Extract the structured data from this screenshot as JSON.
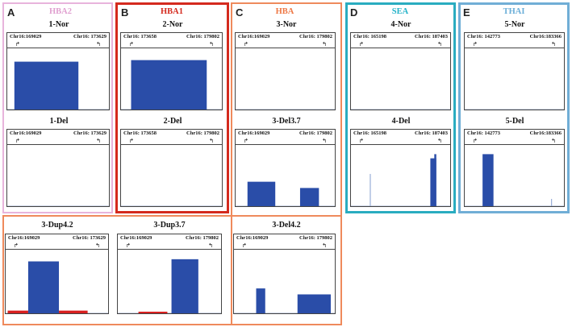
{
  "groups": [
    {
      "letter": "A",
      "name": "HBA2",
      "name_color": "#e0a0d0",
      "frame_color": "#e8b4dc"
    },
    {
      "letter": "B",
      "name": "HBA1",
      "name_color": "#d42a1e",
      "frame_color": "#d42a1e"
    },
    {
      "letter": "C",
      "name": "HBA",
      "name_color": "#ee7744",
      "frame_color": "#ef8a5c"
    },
    {
      "letter": "D",
      "name": "SEA",
      "name_color": "#22b2c8",
      "frame_color": "#2aacc0"
    },
    {
      "letter": "E",
      "name": "THAI",
      "name_color": "#6aaed8",
      "frame_color": "#70aed6"
    }
  ],
  "panels": [
    {
      "id": "1-nor",
      "title": "1-Nor",
      "left": "Chr16:169029",
      "right": "Chr16: 173629",
      "blocks": [
        {
          "s": 0.07,
          "e": 0.7,
          "h": 0.92,
          "c": "#2a4da8"
        }
      ]
    },
    {
      "id": "1-del",
      "title": "1-Del",
      "left": "Chr16:169029",
      "right": "Chr16: 173629",
      "blocks": []
    },
    {
      "id": "2-nor",
      "title": "2-Nor",
      "left": "Chr16: 173658",
      "right": "Chr16: 179802",
      "blocks": [
        {
          "s": 0.1,
          "e": 0.85,
          "h": 0.95,
          "c": "#2a4da8"
        }
      ]
    },
    {
      "id": "2-del",
      "title": "2-Del",
      "left": "Chr16: 173658",
      "right": "Chr16: 179802",
      "blocks": []
    },
    {
      "id": "3-nor",
      "title": "3-Nor",
      "left": "Chr16:169029",
      "right": "Chr16: 179802",
      "blocks": []
    },
    {
      "id": "3-del37",
      "title": "3-Del3.7",
      "left": "Chr16:169029",
      "right": "Chr16: 179802",
      "blocks": [
        {
          "s": 0.12,
          "e": 0.4,
          "h": 0.47,
          "c": "#2a4da8"
        },
        {
          "s": 0.65,
          "e": 0.84,
          "h": 0.35,
          "c": "#2a4da8"
        }
      ]
    },
    {
      "id": "4-nor",
      "title": "4-Nor",
      "left": "Chr16: 165198",
      "right": "Chr16: 187403",
      "blocks": []
    },
    {
      "id": "4-del",
      "title": "4-Del",
      "left": "Chr16: 165198",
      "right": "Chr16: 187403",
      "blocks": [
        {
          "s": 0.19,
          "e": 0.2,
          "h": 0.62,
          "c": "#9bb0d8"
        },
        {
          "s": 0.8,
          "e": 0.86,
          "h": 0.92,
          "c": "#2a4da8"
        },
        {
          "s": 0.84,
          "e": 0.86,
          "h": 1.0,
          "c": "#2a4da8"
        }
      ]
    },
    {
      "id": "5-nor",
      "title": "5-Nor",
      "left": "Chr16: 142773",
      "right": "Chr16:183366",
      "blocks": []
    },
    {
      "id": "5-del",
      "title": "5-Del",
      "left": "Chr16: 142773",
      "right": "Chr16:183366",
      "blocks": [
        {
          "s": 0.18,
          "e": 0.29,
          "h": 1.0,
          "c": "#2a4da8"
        },
        {
          "s": 0.87,
          "e": 0.88,
          "h": 0.14,
          "c": "#9bb0d8"
        }
      ]
    },
    {
      "id": "3-dup42",
      "title": "3-Dup4.2",
      "left": "Chr16:169029",
      "right": "Chr16: 173629",
      "blocks": [
        {
          "s": 0.02,
          "e": 0.22,
          "h": 0.05,
          "c": "#d82020"
        },
        {
          "s": 0.22,
          "e": 0.52,
          "h": 0.96,
          "c": "#2a4da8"
        },
        {
          "s": 0.52,
          "e": 0.8,
          "h": 0.05,
          "c": "#d82020"
        }
      ]
    },
    {
      "id": "3-dup37",
      "title": "3-Dup3.7",
      "left": "Chr16:169029",
      "right": "Chr16: 179802",
      "blocks": [
        {
          "s": 0.2,
          "e": 0.48,
          "h": 0.03,
          "c": "#d82020"
        },
        {
          "s": 0.52,
          "e": 0.78,
          "h": 1.0,
          "c": "#2a4da8"
        }
      ]
    },
    {
      "id": "3-del42",
      "title": "3-Del4.2",
      "left": "Chr16:169029",
      "right": "Chr16: 179802",
      "blocks": [
        {
          "s": 0.22,
          "e": 0.31,
          "h": 0.46,
          "c": "#2a4da8"
        },
        {
          "s": 0.63,
          "e": 0.96,
          "h": 0.35,
          "c": "#2a4da8"
        }
      ]
    }
  ],
  "arrows": {
    "left": "↱",
    "right": "↰"
  }
}
